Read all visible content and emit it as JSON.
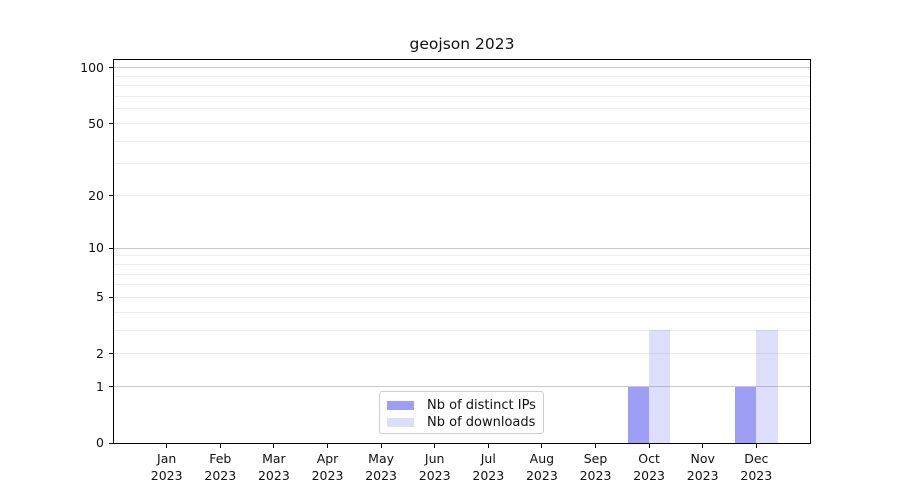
{
  "chart_data": {
    "type": "bar",
    "title": "geojson 2023",
    "categories": [
      "Jan 2023",
      "Feb 2023",
      "Mar 2023",
      "Apr 2023",
      "May 2023",
      "Jun 2023",
      "Jul 2023",
      "Aug 2023",
      "Sep 2023",
      "Oct 2023",
      "Nov 2023",
      "Dec 2023"
    ],
    "series": [
      {
        "name": "Nb of distinct IPs",
        "color": "rgba(99,99,240,0.62)",
        "values": [
          0,
          0,
          0,
          0,
          0,
          0,
          0,
          0,
          0,
          1,
          0,
          1
        ]
      },
      {
        "name": "Nb of downloads",
        "color": "rgba(99,99,240,0.22)",
        "values": [
          0,
          0,
          0,
          0,
          0,
          0,
          0,
          0,
          0,
          3,
          0,
          3
        ]
      }
    ],
    "yaxis": {
      "scale": "log10(1+value)",
      "ticks": [
        {
          "label": "100",
          "value": 100
        },
        {
          "label": "50",
          "value": 50
        },
        {
          "label": "20",
          "value": 20
        },
        {
          "label": "10",
          "value": 10
        },
        {
          "label": "5",
          "value": 5
        },
        {
          "label": "2",
          "value": 2
        },
        {
          "label": "1",
          "value": 1
        },
        {
          "label": "0",
          "value": 0
        }
      ],
      "gridlines_minor": [
        2,
        3,
        4,
        5,
        6,
        7,
        8,
        9,
        20,
        30,
        40,
        50,
        60,
        70,
        80,
        90
      ],
      "gridlines_major": [
        1,
        10,
        100
      ]
    },
    "legend_position": "bottom-center",
    "colors": {
      "grid_major": "#c9c9c9",
      "grid_minor": "#ececec",
      "spine": "#000000",
      "ips_bar": "rgba(99,99,240,0.62)",
      "downloads_bar": "rgba(99,99,240,0.22)"
    }
  }
}
